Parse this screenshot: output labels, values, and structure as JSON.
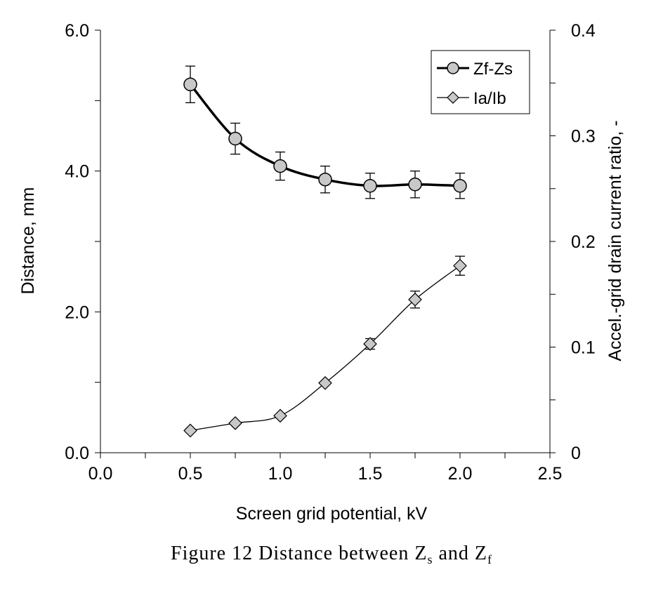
{
  "chart_data": {
    "type": "line",
    "xlabel": "Screen grid potential, kV",
    "ylabel": "Distance, mm",
    "y2label": "Accel.-grid drain current ratio, -",
    "xlim": [
      0.0,
      2.5
    ],
    "ylim": [
      0.0,
      6.0
    ],
    "y2lim": [
      0,
      0.4
    ],
    "xticks": [
      "0.0",
      "0.5",
      "1.0",
      "1.5",
      "2.0",
      "2.5"
    ],
    "yticks": [
      "0.0",
      "2.0",
      "4.0",
      "6.0"
    ],
    "y2ticks": [
      "0",
      "0.1",
      "0.2",
      "0.3",
      "0.4"
    ],
    "grid": false,
    "legend_position": "top-right",
    "series": [
      {
        "name": "Zf-Zs",
        "axis": "left",
        "marker": "circle",
        "x": [
          0.5,
          0.75,
          1.0,
          1.25,
          1.5,
          1.75,
          2.0
        ],
        "y": [
          5.23,
          4.46,
          4.07,
          3.88,
          3.79,
          3.81,
          3.79
        ],
        "error": [
          0.26,
          0.22,
          0.2,
          0.19,
          0.18,
          0.19,
          0.18
        ]
      },
      {
        "name": "Ia/Ib",
        "axis": "right",
        "marker": "diamond",
        "x": [
          0.5,
          0.75,
          1.0,
          1.25,
          1.5,
          1.75,
          2.0
        ],
        "y": [
          0.021,
          0.028,
          0.035,
          0.066,
          0.103,
          0.145,
          0.177
        ],
        "error": [
          0,
          0,
          0,
          0,
          0.005,
          0.008,
          0.009
        ]
      }
    ]
  },
  "caption": {
    "prefix": "Figure 12   Distance between Z",
    "sub1": "s",
    "middle": " and Z",
    "sub2": "f"
  }
}
